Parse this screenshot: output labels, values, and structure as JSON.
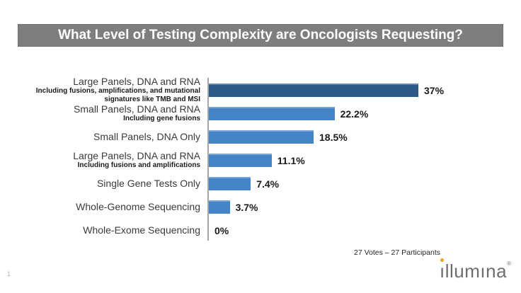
{
  "page": {
    "number": "1"
  },
  "title_banner": {
    "text": "What Level of Testing Complexity are Oncologists Requesting?",
    "bg_color": "#7E7E7E",
    "text_color": "#FFFFFF"
  },
  "footer": {
    "votes_text": "27 Votes – 27 Participants"
  },
  "logo": {
    "brand": "illumina",
    "text_first_i": "ı",
    "text_rest": "llumına",
    "registered": "®",
    "gray": "#6D6E71",
    "orange": "#F5A01E"
  },
  "chart_data": {
    "type": "bar",
    "orientation": "horizontal",
    "title": "What Level of Testing Complexity are Oncologists Requesting?",
    "categories": [
      "Large Panels, DNA and RNA",
      "Small Panels, DNA and RNA",
      "Small Panels, DNA Only",
      "Large Panels, DNA and RNA",
      "Single Gene Tests Only",
      "Whole-Genome Sequencing",
      "Whole-Exome Sequencing"
    ],
    "sublabels": [
      "Including fusions, amplifications, and mutational signatures like TMB and MSI",
      "Including gene fusions",
      "",
      "Including fusions and amplifications",
      "",
      "",
      ""
    ],
    "values": [
      37,
      22.2,
      18.5,
      11.1,
      7.4,
      3.7,
      0
    ],
    "value_labels": [
      "37%",
      "22.2%",
      "18.5%",
      "11.1%",
      "7.4%",
      "3.7%",
      "0%"
    ],
    "bar_colors": [
      "#2D5A87",
      "#4484C6",
      "#4484C6",
      "#4484C6",
      "#4484C6",
      "#4484C6",
      "#4484C6"
    ],
    "xlabel": "",
    "ylabel": "",
    "xlim": [
      0,
      40
    ],
    "grid": false,
    "legend": false,
    "axis_color": "#A6A6A6",
    "footnote": "27 Votes – 27 Participants"
  }
}
